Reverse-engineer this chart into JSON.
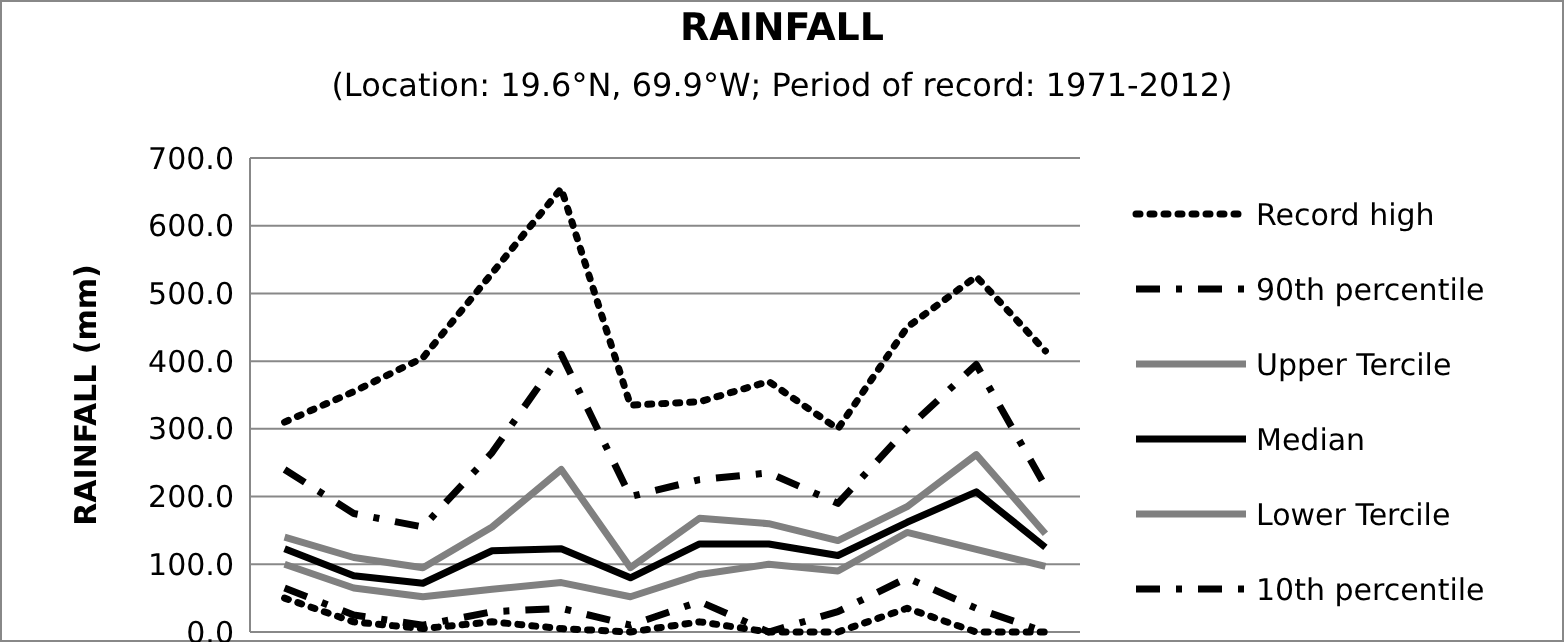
{
  "chart_data": {
    "type": "line",
    "title": "RAINFALL",
    "subtitle": "(Location: 19.6°N, 69.9°W; Period of record: 1971-2012)",
    "ylabel": "RAINFALL (mm)",
    "categories": [
      null,
      null,
      null,
      null,
      null,
      null,
      null,
      null,
      null,
      null,
      null,
      null
    ],
    "ylim": [
      0,
      700
    ],
    "yticks": [
      {
        "value": 0,
        "label": "0.0"
      },
      {
        "value": 100,
        "label": "100.0"
      },
      {
        "value": 200,
        "label": "200.0"
      },
      {
        "value": 300,
        "label": "300.0"
      },
      {
        "value": 400,
        "label": "400.0"
      },
      {
        "value": 500,
        "label": "500.0"
      },
      {
        "value": 600,
        "label": "600.0"
      },
      {
        "value": 700,
        "label": "700.0"
      }
    ],
    "grid": "y",
    "legend": "right",
    "marker": "none",
    "series": [
      {
        "name": "Record high",
        "color": "#000000",
        "line_style": "dotted",
        "values": [
          310,
          355,
          405,
          530,
          655,
          335,
          340,
          370,
          300,
          450,
          525,
          415
        ]
      },
      {
        "name": "90th percentile",
        "color": "#000000",
        "line_style": "dashed",
        "values": [
          240,
          175,
          155,
          265,
          410,
          200,
          225,
          235,
          190,
          300,
          395,
          215
        ]
      },
      {
        "name": "Upper Tercile",
        "color": "#808080",
        "line_style": "solid",
        "values": [
          140,
          110,
          95,
          155,
          240,
          95,
          168,
          160,
          135,
          185,
          262,
          145
        ]
      },
      {
        "name": "Median",
        "color": "#000000",
        "line_style": "solid",
        "values": [
          123,
          83,
          72,
          120,
          123,
          80,
          130,
          130,
          113,
          162,
          207,
          125
        ]
      },
      {
        "name": "Lower Tercile",
        "color": "#808080",
        "line_style": "solid",
        "values": [
          100,
          65,
          52,
          63,
          73,
          52,
          85,
          100,
          90,
          147,
          122,
          97
        ]
      },
      {
        "name": "10th percentile",
        "color": "#000000",
        "line_style": "dashed",
        "values": [
          65,
          25,
          10,
          30,
          35,
          10,
          45,
          0,
          30,
          80,
          35,
          0
        ]
      },
      {
        "color": "#000000",
        "line_style": "dotted",
        "values": [
          50,
          15,
          5,
          15,
          5,
          0,
          15,
          0,
          0,
          35,
          0,
          0
        ]
      }
    ]
  }
}
